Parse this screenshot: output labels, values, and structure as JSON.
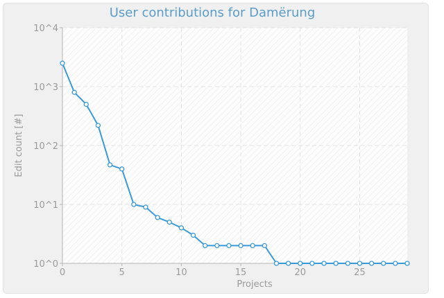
{
  "chart_data": {
    "type": "line",
    "title": "User contributions for Damërung",
    "xlabel": "Projects",
    "ylabel": "Edit count [#]",
    "xlim": [
      0,
      29
    ],
    "ylim_log10": [
      0,
      4
    ],
    "x_ticks": [
      0,
      5,
      10,
      15,
      20,
      25
    ],
    "y_ticks": [
      {
        "value": 1,
        "label": "10^0"
      },
      {
        "value": 10,
        "label": "10^1"
      },
      {
        "value": 100,
        "label": "10^2"
      },
      {
        "value": 1000,
        "label": "10^3"
      },
      {
        "value": 10000,
        "label": "10^4"
      }
    ],
    "scale_y": "log",
    "grid": true,
    "color": "#3a9ad9",
    "x": [
      0,
      1,
      2,
      3,
      4,
      5,
      6,
      7,
      8,
      9,
      10,
      11,
      12,
      13,
      14,
      15,
      16,
      17,
      18,
      19,
      20,
      21,
      22,
      23,
      24,
      25,
      26,
      27,
      28,
      29
    ],
    "values": [
      2500,
      800,
      500,
      220,
      47,
      40,
      10,
      9,
      6,
      5,
      4,
      3,
      2,
      2,
      2,
      2,
      2,
      2,
      1,
      1,
      1,
      1,
      1,
      1,
      1,
      1,
      1,
      1,
      1,
      1
    ]
  }
}
